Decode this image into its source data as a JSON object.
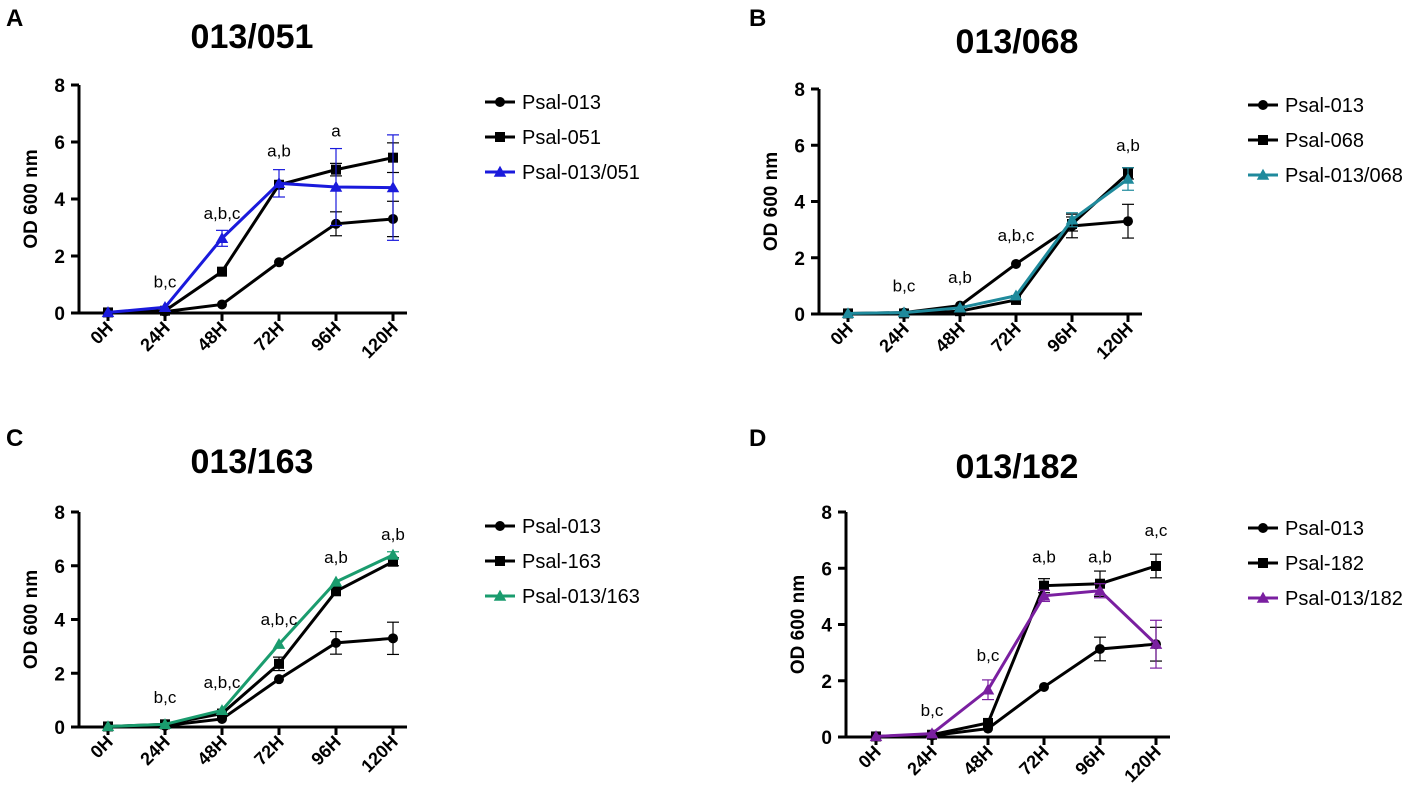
{
  "chart_data": [
    {
      "panel": "A",
      "type": "line",
      "title": "013/051",
      "ylabel": "OD 600 nm",
      "xlabel": "",
      "ylim": [
        0,
        8
      ],
      "yticks": [
        "0",
        "2",
        "4",
        "6",
        "8"
      ],
      "categories": [
        "0H",
        "24H",
        "48H",
        "72H",
        "96H",
        "120H"
      ],
      "series": [
        {
          "name": "Psal-013",
          "marker": "circle",
          "color": "#000000",
          "values": [
            0.02,
            0.05,
            0.3,
            1.78,
            3.13,
            3.3
          ],
          "errors": [
            0,
            0,
            0,
            0,
            0.42,
            0.62
          ]
        },
        {
          "name": "Psal-051",
          "marker": "square",
          "color": "#000000",
          "values": [
            0.02,
            0.08,
            1.45,
            4.5,
            5.03,
            5.45
          ],
          "errors": [
            0,
            0,
            0,
            0,
            0.22,
            0.52
          ]
        },
        {
          "name": "Psal-013/051",
          "marker": "triangle",
          "color": "#1a1adc",
          "values": [
            0.02,
            0.2,
            2.62,
            4.55,
            4.42,
            4.4
          ],
          "errors": [
            0,
            0,
            0.28,
            0.48,
            1.35,
            1.85
          ]
        }
      ],
      "annotations": [
        {
          "category": "24H",
          "text": "b,c",
          "y": 0.9
        },
        {
          "category": "48H",
          "text": "a,b,c",
          "y": 3.3
        },
        {
          "category": "72H",
          "text": "a,b",
          "y": 5.5
        },
        {
          "category": "96H",
          "text": "a",
          "y": 6.2
        }
      ]
    },
    {
      "panel": "B",
      "type": "line",
      "title": "013/068",
      "ylabel": "OD 600 nm",
      "xlabel": "",
      "ylim": [
        0,
        8
      ],
      "yticks": [
        "0",
        "2",
        "4",
        "6",
        "8"
      ],
      "categories": [
        "0H",
        "24H",
        "48H",
        "72H",
        "96H",
        "120H"
      ],
      "series": [
        {
          "name": "Psal-013",
          "marker": "circle",
          "color": "#000000",
          "values": [
            0.02,
            0.05,
            0.3,
            1.78,
            3.13,
            3.3
          ],
          "errors": [
            0,
            0,
            0,
            0,
            0.42,
            0.6
          ]
        },
        {
          "name": "Psal-068",
          "marker": "square",
          "color": "#000000",
          "values": [
            0.02,
            0.02,
            0.1,
            0.5,
            3.2,
            5.0
          ],
          "errors": [
            0,
            0,
            0,
            0,
            0.25,
            0.2
          ]
        },
        {
          "name": "Psal-013/068",
          "marker": "triangle",
          "color": "#1f8a9c",
          "values": [
            0.02,
            0.05,
            0.22,
            0.65,
            3.35,
            4.8
          ],
          "errors": [
            0,
            0,
            0,
            0,
            0.25,
            0.4
          ]
        }
      ],
      "annotations": [
        {
          "category": "24H",
          "text": "b,c",
          "y": 0.8
        },
        {
          "category": "48H",
          "text": "a,b",
          "y": 1.1
        },
        {
          "category": "72H",
          "text": "a,b,c",
          "y": 2.6
        },
        {
          "category": "120H",
          "text": "a,b",
          "y": 5.8
        }
      ]
    },
    {
      "panel": "C",
      "type": "line",
      "title": "013/163",
      "ylabel": "OD 600 nm",
      "xlabel": "",
      "ylim": [
        0,
        8
      ],
      "yticks": [
        "0",
        "2",
        "4",
        "6",
        "8"
      ],
      "categories": [
        "0H",
        "24H",
        "48H",
        "72H",
        "96H",
        "120H"
      ],
      "series": [
        {
          "name": "Psal-013",
          "marker": "circle",
          "color": "#000000",
          "values": [
            0.02,
            0.05,
            0.3,
            1.78,
            3.13,
            3.3
          ],
          "errors": [
            0,
            0,
            0,
            0,
            0.42,
            0.6
          ]
        },
        {
          "name": "Psal-163",
          "marker": "square",
          "color": "#000000",
          "values": [
            0.02,
            0.1,
            0.5,
            2.35,
            5.05,
            6.15
          ],
          "errors": [
            0,
            0,
            0,
            0.25,
            0,
            0.15
          ]
        },
        {
          "name": "Psal-013/163",
          "marker": "triangle",
          "color": "#1a9c6e",
          "values": [
            0.02,
            0.1,
            0.62,
            3.08,
            5.4,
            6.4
          ],
          "errors": [
            0,
            0,
            0,
            0,
            0,
            0.12
          ]
        }
      ],
      "annotations": [
        {
          "category": "24H",
          "text": "b,c",
          "y": 0.9
        },
        {
          "category": "48H",
          "text": "a,b,c",
          "y": 1.45
        },
        {
          "category": "72H",
          "text": "a,b,c",
          "y": 3.8
        },
        {
          "category": "96H",
          "text": "a,b",
          "y": 6.1
        },
        {
          "category": "120H",
          "text": "a,b",
          "y": 6.95
        }
      ]
    },
    {
      "panel": "D",
      "type": "line",
      "title": "013/182",
      "ylabel": "OD 600 nm",
      "xlabel": "",
      "ylim": [
        0,
        8
      ],
      "yticks": [
        "0",
        "2",
        "4",
        "6",
        "8"
      ],
      "categories": [
        "0H",
        "24H",
        "48H",
        "72H",
        "96H",
        "120H"
      ],
      "series": [
        {
          "name": "Psal-013",
          "marker": "circle",
          "color": "#000000",
          "values": [
            0.02,
            0.05,
            0.3,
            1.78,
            3.13,
            3.3
          ],
          "errors": [
            0,
            0,
            0,
            0,
            0.42,
            0.6
          ]
        },
        {
          "name": "Psal-182",
          "marker": "square",
          "color": "#000000",
          "values": [
            0.02,
            0.08,
            0.5,
            5.38,
            5.45,
            6.08
          ],
          "errors": [
            0,
            0,
            0,
            0.25,
            0.45,
            0.42
          ]
        },
        {
          "name": "Psal-013/182",
          "marker": "triangle",
          "color": "#7a1fa0",
          "values": [
            0.02,
            0.12,
            1.68,
            5.02,
            5.2,
            3.3
          ],
          "errors": [
            0,
            0,
            0.35,
            0.2,
            0.25,
            0.85
          ]
        }
      ],
      "annotations": [
        {
          "category": "24H",
          "text": "b,c",
          "y": 0.75
        },
        {
          "category": "48H",
          "text": "b,c",
          "y": 2.7
        },
        {
          "category": "72H",
          "text": "a,b",
          "y": 6.2
        },
        {
          "category": "96H",
          "text": "a,b",
          "y": 6.2
        },
        {
          "category": "120H",
          "text": "a,c",
          "y": 7.15
        }
      ]
    }
  ]
}
